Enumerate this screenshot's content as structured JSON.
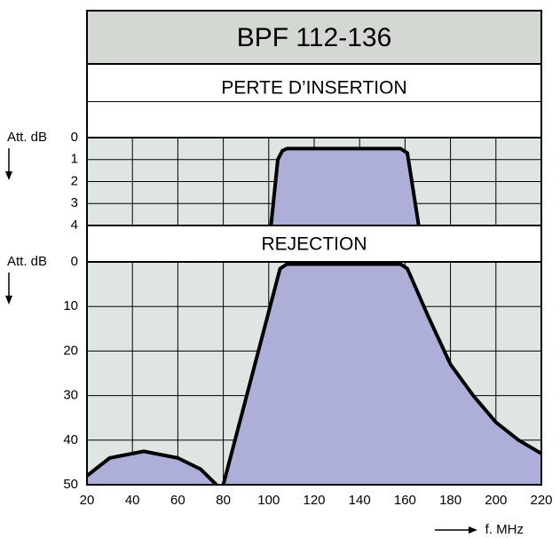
{
  "title": "BPF 112-136",
  "xlabel": "f. MHz",
  "chart_data": [
    {
      "type": "area",
      "title": "PERTE D’INSERTION",
      "ylabel": "Att. dB",
      "color": "#adafd8",
      "xlim": [
        20,
        220
      ],
      "xticks": [
        20,
        40,
        60,
        80,
        100,
        120,
        140,
        160,
        180,
        200,
        220
      ],
      "ylim": [
        0,
        4
      ],
      "yticks": [
        0,
        1,
        2,
        3,
        4
      ],
      "y_inverted": true,
      "grid": true,
      "series": [
        {
          "x": [
            101,
            104,
            106,
            108,
            158,
            161,
            163,
            166
          ],
          "values": [
            4,
            1,
            0.6,
            0.5,
            0.5,
            0.7,
            2,
            4
          ]
        }
      ]
    },
    {
      "type": "area",
      "title": "REJECTION",
      "ylabel": "Att. dB",
      "color": "#adafd8",
      "xlim": [
        20,
        220
      ],
      "xticks": [
        20,
        40,
        60,
        80,
        100,
        120,
        140,
        160,
        180,
        200,
        220
      ],
      "ylim": [
        0,
        50
      ],
      "yticks": [
        0,
        10,
        20,
        30,
        40,
        50
      ],
      "y_inverted": true,
      "grid": true,
      "series": [
        {
          "x": [
            20,
            30,
            45,
            60,
            70,
            77
          ],
          "values": [
            48,
            44,
            42.5,
            44,
            46.5,
            50
          ]
        },
        {
          "x": [
            80,
            105,
            108,
            158,
            161,
            164,
            170,
            180,
            190,
            200,
            210,
            220
          ],
          "values": [
            50,
            1.5,
            0.5,
            0.5,
            1.5,
            5,
            12,
            23,
            30,
            36,
            40,
            43
          ]
        }
      ]
    }
  ]
}
